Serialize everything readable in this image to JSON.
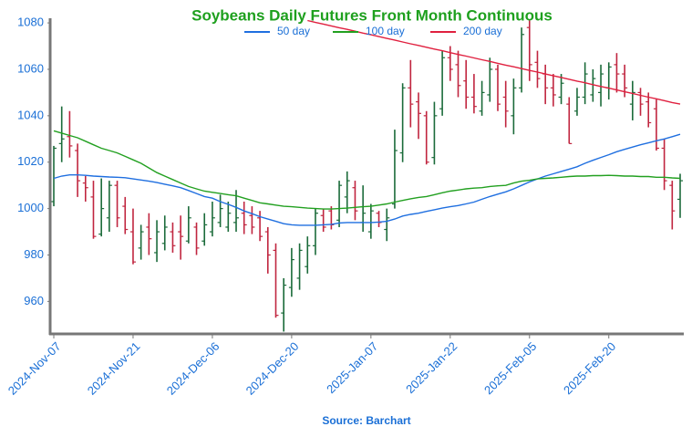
{
  "chart_data": {
    "type": "ohlc",
    "title": "Soybeans Daily Futures Front Month Continuous",
    "source": "Source: Barchart",
    "x": [
      "2024-Nov-07",
      "2024-Nov-08",
      "2024-Nov-11",
      "2024-Nov-12",
      "2024-Nov-13",
      "2024-Nov-14",
      "2024-Nov-15",
      "2024-Nov-18",
      "2024-Nov-19",
      "2024-Nov-20",
      "2024-Nov-21",
      "2024-Nov-22",
      "2024-Nov-25",
      "2024-Nov-26",
      "2024-Nov-27",
      "2024-Nov-29",
      "2024-Dec-02",
      "2024-Dec-03",
      "2024-Dec-04",
      "2024-Dec-05",
      "2024-Dec-06",
      "2024-Dec-09",
      "2024-Dec-10",
      "2024-Dec-11",
      "2024-Dec-12",
      "2024-Dec-13",
      "2024-Dec-16",
      "2024-Dec-17",
      "2024-Dec-18",
      "2024-Dec-19",
      "2024-Dec-20",
      "2024-Dec-23",
      "2024-Dec-24",
      "2024-Dec-26",
      "2024-Dec-27",
      "2024-Dec-30",
      "2024-Dec-31",
      "2025-Jan-02",
      "2025-Jan-03",
      "2025-Jan-06",
      "2025-Jan-07",
      "2025-Jan-08",
      "2025-Jan-09",
      "2025-Jan-10",
      "2025-Jan-13",
      "2025-Jan-14",
      "2025-Jan-15",
      "2025-Jan-16",
      "2025-Jan-17",
      "2025-Jan-21",
      "2025-Jan-22",
      "2025-Jan-23",
      "2025-Jan-24",
      "2025-Jan-27",
      "2025-Jan-28",
      "2025-Jan-29",
      "2025-Jan-30",
      "2025-Jan-31",
      "2025-Feb-03",
      "2025-Feb-04",
      "2025-Feb-05",
      "2025-Feb-06",
      "2025-Feb-07",
      "2025-Feb-10",
      "2025-Feb-11",
      "2025-Feb-12",
      "2025-Feb-13",
      "2025-Feb-14",
      "2025-Feb-18",
      "2025-Feb-19",
      "2025-Feb-20",
      "2025-Feb-21",
      "2025-Feb-24",
      "2025-Feb-25",
      "2025-Feb-26",
      "2025-Feb-27",
      "2025-Feb-28",
      "2025-Mar-03",
      "2025-Mar-04",
      "2025-Mar-05"
    ],
    "open": [
      1003,
      1028,
      1031,
      1025,
      1011,
      1005,
      989,
      996,
      1010,
      1001,
      990,
      983,
      992,
      981,
      985,
      990,
      990,
      986,
      992,
      986,
      990,
      994,
      992,
      994,
      998,
      997,
      996,
      990,
      982,
      955,
      966,
      970,
      975,
      984,
      997,
      999,
      995,
      1005,
      1009,
      994,
      990,
      998,
      991,
      1002,
      1024,
      1052,
      1046,
      1040,
      1022,
      1043,
      1065,
      1062,
      1055,
      1048,
      1042,
      1049,
      1060,
      1048,
      1040,
      1052,
      1078,
      1063,
      1058,
      1052,
      1048,
      1045,
      1042,
      1048,
      1049,
      1050,
      1052,
      1062,
      1058,
      1045,
      1050,
      1046,
      1043,
      1026,
      1010,
      1004
    ],
    "high": [
      1027,
      1044,
      1042,
      1028,
      1014,
      1012,
      1013,
      1012,
      1012,
      1005,
      1000,
      993,
      998,
      995,
      997,
      994,
      997,
      1001,
      994,
      998,
      1003,
      1006,
      1003,
      1008,
      1003,
      1001,
      999,
      992,
      985,
      970,
      983,
      985,
      988,
      1000,
      1000,
      1001,
      1012,
      1016,
      1012,
      1010,
      1002,
      999,
      1000,
      1034,
      1054,
      1064,
      1050,
      1042,
      1046,
      1068,
      1070,
      1068,
      1064,
      1058,
      1055,
      1065,
      1062,
      1055,
      1056,
      1078,
      1081,
      1068,
      1062,
      1058,
      1058,
      1048,
      1052,
      1063,
      1060,
      1062,
      1063,
      1067,
      1062,
      1055,
      1052,
      1050,
      1047,
      1030,
      1012,
      1015
    ],
    "low": [
      1001,
      1020,
      1022,
      1005,
      1003,
      987,
      988,
      990,
      992,
      989,
      976,
      978,
      980,
      977,
      982,
      981,
      978,
      985,
      980,
      984,
      988,
      992,
      990,
      990,
      989,
      989,
      986,
      972,
      953,
      947,
      962,
      965,
      972,
      980,
      990,
      991,
      992,
      998,
      995,
      990,
      987,
      992,
      986,
      1000,
      1020,
      1035,
      1030,
      1019,
      1019,
      1040,
      1055,
      1048,
      1043,
      1041,
      1040,
      1046,
      1042,
      1035,
      1032,
      1050,
      1055,
      1052,
      1045,
      1044,
      1045,
      1028,
      1040,
      1045,
      1046,
      1044,
      1047,
      1050,
      1048,
      1038,
      1040,
      1035,
      1025,
      1008,
      991,
      996
    ],
    "close": [
      1026,
      1030,
      1027,
      1012,
      1009,
      988,
      1000,
      1010,
      996,
      991,
      977,
      990,
      987,
      990,
      992,
      984,
      988,
      996,
      983,
      993,
      996,
      1000,
      998,
      996,
      993,
      992,
      988,
      980,
      954,
      967,
      978,
      982,
      984,
      998,
      992,
      993,
      1010,
      1012,
      999,
      998,
      999,
      994,
      996,
      1025,
      1052,
      1045,
      1041,
      1020,
      1040,
      1065,
      1060,
      1053,
      1048,
      1044,
      1050,
      1060,
      1045,
      1042,
      1052,
      1075,
      1062,
      1056,
      1052,
      1049,
      1054,
      1028,
      1048,
      1058,
      1056,
      1058,
      1061,
      1058,
      1052,
      1050,
      1045,
      1037,
      1026,
      1012,
      999,
      1012
    ],
    "up_color": "#1b6b3a",
    "down_color": "#c0253f",
    "series": [
      {
        "name": "50 day",
        "color": "#1f6fe0",
        "values": [
          1013.0,
          1014.0,
          1014.5,
          1014.5,
          1014.3,
          1014.0,
          1013.8,
          1013.6,
          1013.5,
          1013.3,
          1012.8,
          1012.3,
          1011.8,
          1011.2,
          1010.5,
          1009.8,
          1009.0,
          1007.8,
          1006.5,
          1005.2,
          1004.5,
          1003.0,
          1001.8,
          1000.5,
          999.0,
          997.8,
          996.5,
          995.5,
          994.5,
          993.5,
          993.0,
          992.8,
          992.8,
          992.8,
          993.0,
          993.2,
          993.8,
          994.0,
          994.0,
          994.0,
          994.0,
          994.2,
          994.5,
          995.5,
          996.8,
          997.5,
          998.0,
          998.8,
          999.5,
          1000.2,
          1000.8,
          1001.3,
          1002.0,
          1002.8,
          1004.0,
          1005.2,
          1006.2,
          1007.2,
          1008.5,
          1010.0,
          1011.5,
          1012.8,
          1014.0,
          1015.0,
          1016.0,
          1017.0,
          1018.0,
          1019.5,
          1020.8,
          1022.0,
          1023.2,
          1024.5,
          1025.5,
          1026.5,
          1027.5,
          1028.3,
          1029.2,
          1030.0,
          1031.0,
          1032.0
        ]
      },
      {
        "name": "100 day",
        "color": "#22a020",
        "values": [
          1033.5,
          1032.5,
          1031.5,
          1030.5,
          1029.0,
          1027.5,
          1026.0,
          1025.0,
          1024.0,
          1022.5,
          1021.0,
          1019.5,
          1017.5,
          1015.5,
          1014.0,
          1012.5,
          1011.0,
          1009.5,
          1008.5,
          1007.5,
          1007.0,
          1006.5,
          1006.0,
          1005.5,
          1004.5,
          1003.5,
          1002.5,
          1002.0,
          1001.5,
          1001.0,
          1000.8,
          1000.5,
          1000.2,
          1000.0,
          999.8,
          999.8,
          1000.0,
          1000.2,
          1000.5,
          1000.8,
          1001.0,
          1001.5,
          1002.0,
          1002.8,
          1003.5,
          1004.2,
          1004.8,
          1005.2,
          1006.0,
          1006.8,
          1007.5,
          1008.0,
          1008.5,
          1008.8,
          1009.0,
          1009.5,
          1009.8,
          1010.0,
          1011.0,
          1011.8,
          1012.2,
          1012.8,
          1013.0,
          1013.2,
          1013.5,
          1013.8,
          1014.0,
          1014.0,
          1014.2,
          1014.2,
          1014.3,
          1014.2,
          1014.0,
          1014.0,
          1013.8,
          1013.8,
          1013.5,
          1013.5,
          1013.2,
          1013.0
        ]
      },
      {
        "name": "200 day",
        "color": "#e0203f",
        "values": [
          null,
          null,
          null,
          null,
          null,
          null,
          null,
          null,
          null,
          null,
          null,
          null,
          null,
          null,
          null,
          null,
          null,
          null,
          null,
          null,
          null,
          null,
          null,
          null,
          null,
          null,
          null,
          null,
          null,
          null,
          null,
          null,
          1081.0,
          1080.2,
          1079.5,
          1078.7,
          1077.9,
          1077.2,
          1076.4,
          1075.6,
          1074.9,
          1074.1,
          1073.3,
          1072.6,
          1071.8,
          1071.0,
          1070.3,
          1069.5,
          1068.7,
          1068.0,
          1067.2,
          1066.4,
          1065.7,
          1064.9,
          1064.1,
          1063.4,
          1062.6,
          1061.8,
          1061.1,
          1060.3,
          1059.5,
          1058.8,
          1058.0,
          1057.2,
          1056.5,
          1055.7,
          1054.9,
          1054.2,
          1053.4,
          1052.6,
          1051.9,
          1051.1,
          1050.3,
          1049.6,
          1048.8,
          1048.0,
          1047.3,
          1046.5,
          1045.7,
          1045.0
        ]
      }
    ],
    "ylim": [
      946,
      1082
    ],
    "yticks": [
      960,
      980,
      1000,
      1020,
      1040,
      1060,
      1080
    ],
    "xticks": [
      "2024-Nov-07",
      "2024-Nov-21",
      "2024-Dec-06",
      "2024-Dec-20",
      "2025-Jan-07",
      "2025-Jan-22",
      "2025-Feb-05",
      "2025-Feb-20"
    ],
    "grid": false,
    "legend": "top",
    "title_color": "#1ea01e",
    "text_color": "#1a6fd6"
  }
}
